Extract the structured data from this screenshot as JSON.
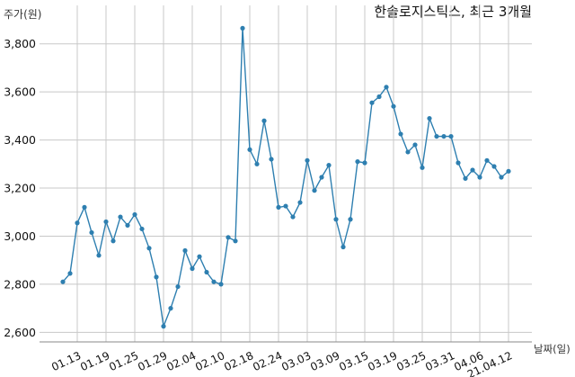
{
  "chart_data": {
    "type": "line",
    "title": "한솔로지스틱스, 최근 3개월",
    "ylabel": "주가(원)",
    "xlabel": "날짜(일)",
    "ylim": [
      2560,
      3960
    ],
    "yticks": [
      2600,
      2800,
      3000,
      3200,
      3400,
      3600,
      3800
    ],
    "ytick_labels": [
      "2,600",
      "2,800",
      "3,000",
      "3,200",
      "3,400",
      "3,600",
      "3,800"
    ],
    "grid": true,
    "x": [
      "01.11",
      "01.12",
      "01.13",
      "01.14",
      "01.15",
      "01.18",
      "01.19",
      "01.20",
      "01.21",
      "01.22",
      "01.25",
      "01.26",
      "01.27",
      "01.28",
      "01.29",
      "02.01",
      "02.02",
      "02.03",
      "02.04",
      "02.05",
      "02.08",
      "02.09",
      "02.10",
      "02.15",
      "02.16",
      "02.17",
      "02.18",
      "02.19",
      "02.22",
      "02.23",
      "02.24",
      "02.25",
      "02.26",
      "03.02",
      "03.03",
      "03.04",
      "03.05",
      "03.08",
      "03.09",
      "03.10",
      "03.11",
      "03.12",
      "03.15",
      "03.16",
      "03.17",
      "03.18",
      "03.19",
      "03.22",
      "03.23",
      "03.24",
      "03.25",
      "03.26",
      "03.29",
      "03.30",
      "03.31",
      "04.01",
      "04.02",
      "04.05",
      "04.06",
      "04.07",
      "04.08",
      "04.09",
      "04.12"
    ],
    "xtick_labels": [
      "01.13",
      "01.19",
      "01.25",
      "01.29",
      "02.04",
      "02.10",
      "02.18",
      "02.24",
      "03.03",
      "03.09",
      "03.15",
      "03.19",
      "03.25",
      "03.31",
      "04.06",
      "21.04.12"
    ],
    "xtick_index": [
      2,
      6,
      10,
      14,
      18,
      22,
      26,
      30,
      34,
      38,
      42,
      46,
      50,
      54,
      58,
      62
    ],
    "series": [
      {
        "color": "#2e7fb0",
        "values": [
          2810,
          2845,
          3055,
          3120,
          3015,
          2920,
          3060,
          2980,
          3080,
          3045,
          3090,
          3030,
          2950,
          2830,
          2625,
          2700,
          2790,
          2940,
          2865,
          2915,
          2850,
          2810,
          2800,
          2995,
          2980,
          3865,
          3360,
          3300,
          3480,
          3320,
          3120,
          3125,
          3080,
          3140,
          3315,
          3190,
          3245,
          3295,
          3070,
          2955,
          3070,
          3310,
          3305,
          3555,
          3580,
          3620,
          3540,
          3425,
          3350,
          3380,
          3285,
          3490,
          3415,
          3415,
          3415,
          3305,
          3240,
          3275,
          3245,
          3315,
          3290,
          3245,
          3270
        ]
      }
    ]
  }
}
